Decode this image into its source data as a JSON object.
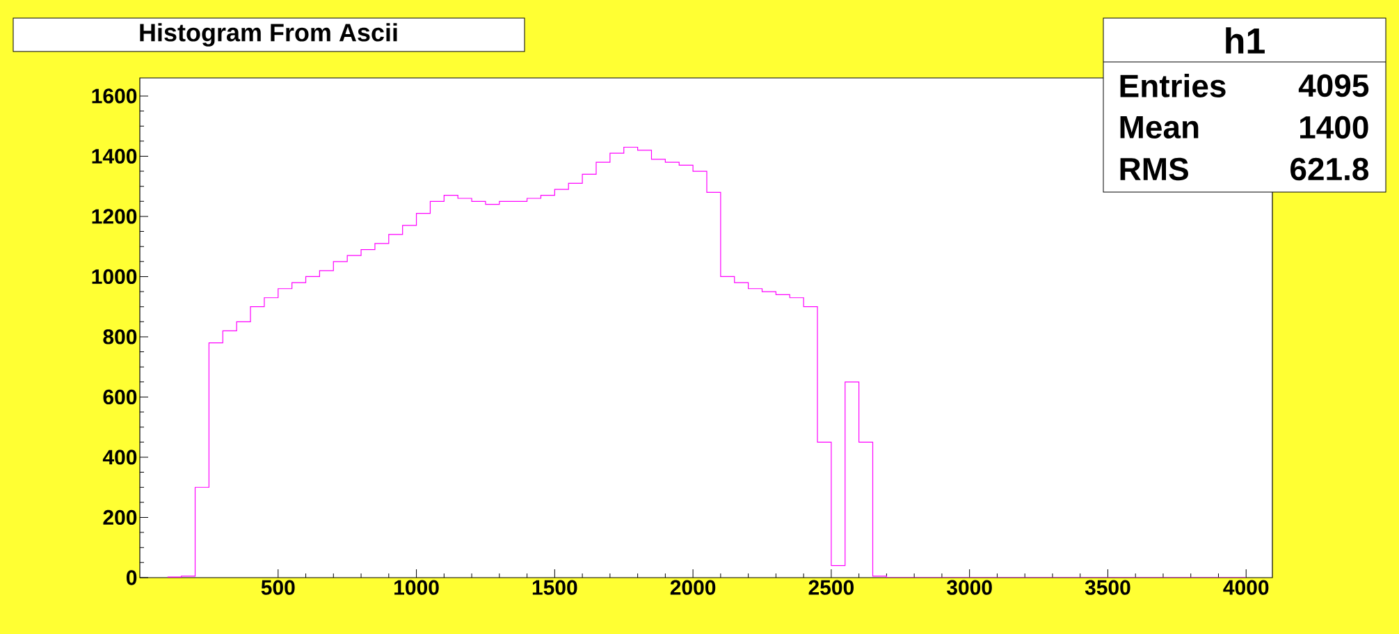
{
  "chart_data": {
    "type": "histogram",
    "title": "Histogram From Ascii",
    "bins": [
      100,
      150,
      200,
      250,
      300,
      350,
      400,
      450,
      500,
      550,
      600,
      650,
      700,
      750,
      800,
      850,
      900,
      950,
      1000,
      1050,
      1100,
      1150,
      1200,
      1250,
      1300,
      1350,
      1400,
      1450,
      1500,
      1550,
      1600,
      1650,
      1700,
      1750,
      1800,
      1850,
      1900,
      1950,
      2000,
      2050,
      2100,
      2150,
      2200,
      2250,
      2300,
      2350,
      2400,
      2450,
      2500,
      2550,
      2600,
      2650,
      2700,
      2750,
      2800,
      2850,
      2900,
      2950,
      3000,
      3050,
      3100,
      3150,
      3200,
      3250,
      3300,
      3350,
      3400,
      3450,
      3500,
      3550,
      3600,
      3650,
      3700,
      3750,
      3800,
      3850,
      3900,
      3950,
      4000
    ],
    "values": [
      2,
      5,
      300,
      780,
      820,
      850,
      900,
      930,
      960,
      980,
      1000,
      1020,
      1050,
      1070,
      1090,
      1110,
      1140,
      1170,
      1210,
      1250,
      1270,
      1260,
      1250,
      1240,
      1250,
      1250,
      1260,
      1270,
      1290,
      1310,
      1340,
      1380,
      1410,
      1430,
      1420,
      1390,
      1380,
      1370,
      1350,
      1280,
      1000,
      980,
      960,
      950,
      940,
      930,
      900,
      450,
      40,
      650,
      450,
      5,
      0,
      0,
      0,
      0,
      0,
      0,
      0,
      0,
      0,
      0,
      0,
      0,
      0,
      0,
      0,
      0,
      0,
      0,
      0,
      0,
      0,
      0,
      0,
      0,
      0,
      0
    ],
    "color": "#ff00ff",
    "xlim": [
      0,
      4095
    ],
    "ylim": [
      0,
      1660
    ],
    "xticks": [
      500,
      1000,
      1500,
      2000,
      2500,
      3000,
      3500,
      4000
    ],
    "yticks": [
      0,
      200,
      400,
      600,
      800,
      1000,
      1200,
      1400,
      1600
    ],
    "annotations": [
      "h1",
      "Entries",
      "4095",
      "Mean",
      "1400",
      "RMS",
      "621.8"
    ]
  }
}
